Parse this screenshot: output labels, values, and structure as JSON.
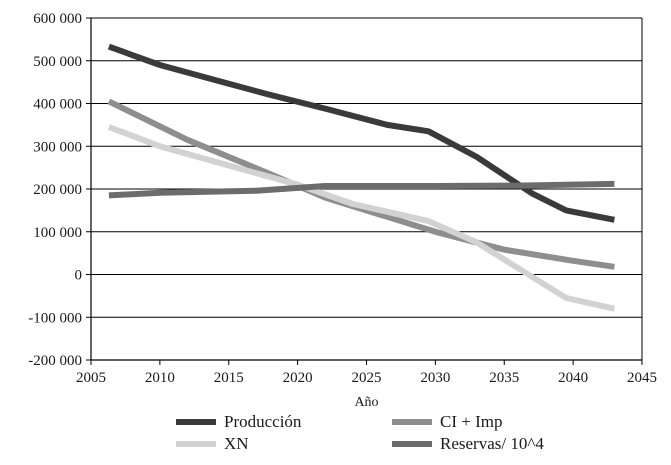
{
  "chart_data": {
    "type": "line",
    "title": "",
    "xlabel": "Año",
    "ylabel": "",
    "xlim": [
      2005,
      2045
    ],
    "ylim": [
      -200000,
      600000
    ],
    "xticks": [
      2005,
      2010,
      2015,
      2020,
      2025,
      2030,
      2035,
      2040,
      2045
    ],
    "yticks": [
      -200000,
      -100000,
      0,
      100000,
      200000,
      300000,
      400000,
      500000,
      600000
    ],
    "ytick_labels": [
      "-200 000",
      "-100 000",
      "0",
      "100 000",
      "200 000",
      "300 000",
      "400 000",
      "500 000",
      "600 000"
    ],
    "grid": "horizontal",
    "legend_position": "bottom",
    "series": [
      {
        "name": "Producción",
        "color": "#3a3a3a",
        "x": [
          2006.3,
          2010,
          2014,
          2018,
          2022,
          2026.5,
          2029.5,
          2033,
          2037,
          2039.5,
          2043
        ],
        "y": [
          533000,
          490000,
          455000,
          420000,
          388000,
          350000,
          335000,
          275000,
          190000,
          150000,
          128000
        ]
      },
      {
        "name": "CI + Imp",
        "color": "#8e8e8e",
        "x": [
          2006.3,
          2012,
          2018,
          2022,
          2026,
          2030,
          2035,
          2040,
          2043
        ],
        "y": [
          405000,
          315000,
          235000,
          180000,
          140000,
          100000,
          58000,
          32000,
          18000
        ]
      },
      {
        "name": "XN",
        "color": "#d2d2d2",
        "x": [
          2006.3,
          2010,
          2015,
          2020,
          2024,
          2029.5,
          2033,
          2039.5,
          2043
        ],
        "y": [
          345000,
          300000,
          255000,
          210000,
          165000,
          125000,
          75000,
          -55000,
          -80000
        ]
      },
      {
        "name": "Reservas/ 10^4",
        "color": "#6c6c6c",
        "x": [
          2006.3,
          2010,
          2017,
          2022,
          2030,
          2036,
          2043
        ],
        "y": [
          185000,
          191000,
          196000,
          207000,
          207000,
          208000,
          212000
        ]
      }
    ]
  }
}
